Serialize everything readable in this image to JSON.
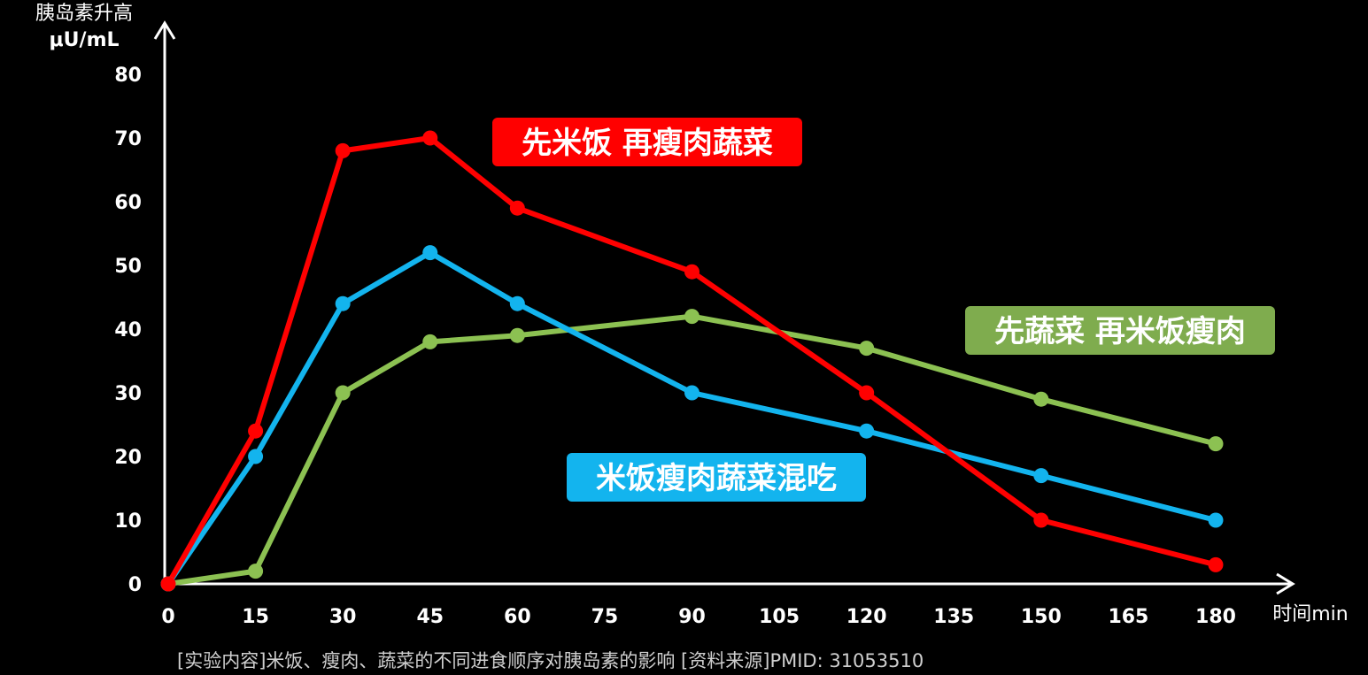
{
  "chart_data": {
    "type": "line",
    "ylabel": "胰岛素升高",
    "yunit": "μU/mL",
    "xlabel": "时间min",
    "ylim": [
      0,
      80
    ],
    "yticks": [
      0,
      10,
      20,
      30,
      40,
      50,
      60,
      70,
      80
    ],
    "xlim": [
      0,
      180
    ],
    "xticks": [
      0,
      15,
      30,
      45,
      60,
      75,
      90,
      105,
      120,
      135,
      150,
      165,
      180
    ],
    "grid": false,
    "x": [
      0,
      15,
      30,
      45,
      60,
      90,
      120,
      150,
      180
    ],
    "series": [
      {
        "name": "先米饭 再瘦肉蔬菜",
        "color": "#ff0000",
        "values": [
          0,
          24,
          68,
          70,
          59,
          49,
          30,
          10,
          3
        ]
      },
      {
        "name": "米饭瘦肉蔬菜混吃",
        "color": "#13b4ee",
        "values": [
          0,
          20,
          44,
          52,
          44,
          30,
          24,
          17,
          10
        ]
      },
      {
        "name": "先蔬菜 再米饭瘦肉",
        "color": "#8cc152",
        "values": [
          0,
          2,
          30,
          38,
          39,
          42,
          37,
          29,
          22
        ]
      }
    ],
    "note": "[实验内容]米饭、瘦肉、蔬菜的不同进食顺序对胰岛素的影响  [资料来源]PMID: 31053510"
  }
}
